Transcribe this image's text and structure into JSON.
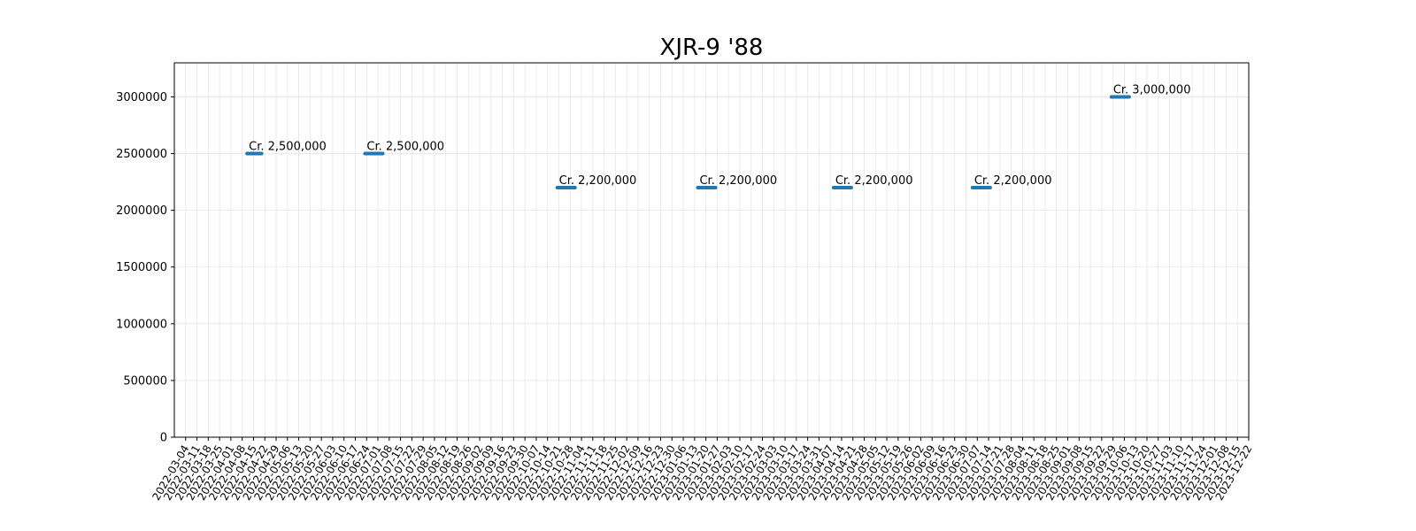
{
  "chart_data": {
    "type": "line",
    "title": "XJR-9 '88",
    "xlabel": "",
    "ylabel": "",
    "grid": true,
    "xlim": [
      "2022-02-25",
      "2023-12-22"
    ],
    "ylim": [
      0,
      3300000
    ],
    "yticks": [
      0,
      500000,
      1000000,
      1500000,
      2000000,
      2500000,
      3000000
    ],
    "xtick_start": "2022-03-04",
    "xtick_end": "2023-12-22",
    "xtick_step_days": 7,
    "series": [
      {
        "color": "#1f77b4",
        "segments": [
          {
            "x0": "2022-04-11",
            "x1": "2022-04-20",
            "y": 2500000,
            "label": "Cr. 2,500,000"
          },
          {
            "x0": "2022-06-23",
            "x1": "2022-07-04",
            "y": 2500000,
            "label": "Cr. 2,500,000"
          },
          {
            "x0": "2022-10-20",
            "x1": "2022-10-31",
            "y": 2200000,
            "label": "Cr. 2,200,000"
          },
          {
            "x0": "2023-01-15",
            "x1": "2023-01-26",
            "y": 2200000,
            "label": "Cr. 2,200,000"
          },
          {
            "x0": "2023-04-09",
            "x1": "2023-04-20",
            "y": 2200000,
            "label": "Cr. 2,200,000"
          },
          {
            "x0": "2023-07-04",
            "x1": "2023-07-15",
            "y": 3000000,
            "label": "Cr. 3,000,000",
            "_ignore": true
          },
          {
            "x0": "2023-07-04",
            "x1": "2023-07-15",
            "y": 2200000,
            "label": "Cr. 2,200,000"
          },
          {
            "x0": "2023-09-28",
            "x1": "2023-10-09",
            "y": 3000000,
            "label": "Cr. 3,000,000"
          }
        ]
      }
    ]
  }
}
